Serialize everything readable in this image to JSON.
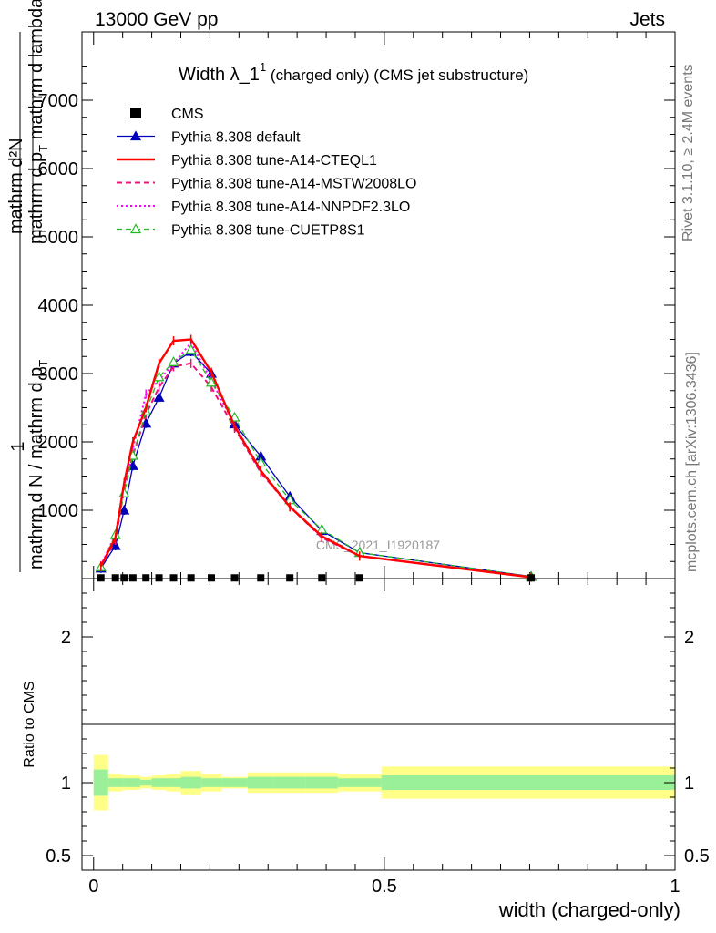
{
  "header": {
    "left": "13000 GeV pp",
    "right": "Jets"
  },
  "side_labels": {
    "rivet": "Rivet 3.1.10, ≥ 2.4M events",
    "mcplots": "mcplots.cern.ch [arXiv:1306.3436]"
  },
  "watermark": "CMS_2021_I1920187",
  "chart_data": {
    "type": "line",
    "title": "Width λ_1¹ (charged only) (CMS jet substructure)",
    "title_parts": {
      "main": "Width λ_1",
      "sup": "1",
      "rest": "(charged only) (CMS jet substructure)"
    },
    "ylabel": "1 / mathrm d N / mathrm d p_T mathrm d^2N / mathrm d p_T mathrm d lambda",
    "ylabel_parts": {
      "one": "1",
      "den1": "mathrm d N / mathrm d p",
      "den1_sub": "T",
      "num": "mathrm d²N",
      "den2": "mathrm d p",
      "den2_sub": "T",
      "den2_rest": "mathrm d lambda"
    },
    "xlabel": "width (charged-only)",
    "ratio_ylabel": "Ratio to CMS",
    "xlim": [
      -0.02,
      1.0
    ],
    "ylim": [
      0,
      8000
    ],
    "ratio_ylim": [
      0.4,
      2.4
    ],
    "x_ticks": [
      {
        "value": 0,
        "label": "0"
      },
      {
        "value": 0.5,
        "label": "0.5"
      },
      {
        "value": 1,
        "label": "1"
      }
    ],
    "y_ticks": [
      {
        "value": 1000,
        "label": "1000"
      },
      {
        "value": 2000,
        "label": "2000"
      },
      {
        "value": 3000,
        "label": "3000"
      },
      {
        "value": 4000,
        "label": "4000"
      },
      {
        "value": 5000,
        "label": "5000"
      },
      {
        "value": 6000,
        "label": "6000"
      },
      {
        "value": 7000,
        "label": "7000"
      }
    ],
    "ratio_y_ticks": [
      {
        "value": 0.5,
        "label": "0.5"
      },
      {
        "value": 1,
        "label": "1"
      },
      {
        "value": 2,
        "label": "2"
      }
    ],
    "x": [
      0.0125,
      0.0375,
      0.0525,
      0.0675,
      0.09,
      0.1125,
      0.1375,
      0.1675,
      0.2025,
      0.2425,
      0.2875,
      0.3375,
      0.3925,
      0.4575,
      0.7525
    ],
    "x_edges": [
      0.0,
      0.025,
      0.05,
      0.055,
      0.08,
      0.1,
      0.125,
      0.15,
      0.185,
      0.22,
      0.265,
      0.31,
      0.365,
      0.42,
      0.495,
      1.0
    ],
    "series": [
      {
        "name": "CMS",
        "style": "cms",
        "color": "#000000",
        "values": [
          10,
          10,
          10,
          10,
          10,
          10,
          10,
          10,
          10,
          10,
          10,
          10,
          10,
          10,
          10
        ]
      },
      {
        "name": "Pythia 8.308 default",
        "style": "solid-triangle",
        "color": "#0000bb",
        "values": [
          150,
          480,
          1000,
          1650,
          2270,
          2650,
          3150,
          3320,
          3000,
          2260,
          1790,
          1200,
          700,
          380,
          30
        ]
      },
      {
        "name": "Pythia 8.308 tune-A14-CTEQL1",
        "style": "solid-thick",
        "color": "#ff0000",
        "values": [
          180,
          600,
          1400,
          2000,
          2500,
          3150,
          3480,
          3500,
          3020,
          2230,
          1580,
          1050,
          620,
          330,
          20
        ]
      },
      {
        "name": "Pythia 8.308 tune-A14-MSTW2008LO",
        "style": "dashed",
        "color": "#ee1177",
        "values": [
          170,
          560,
          1300,
          1800,
          2400,
          2800,
          3100,
          3150,
          2800,
          2200,
          1550,
          1050,
          600,
          330,
          20
        ]
      },
      {
        "name": "Pythia 8.308 tune-A14-NNPDF2.3LO",
        "style": "dotted",
        "color": "#ff00ff",
        "values": [
          190,
          650,
          1350,
          1900,
          2700,
          2900,
          3150,
          3450,
          2900,
          2250,
          1570,
          1060,
          610,
          330,
          20
        ]
      },
      {
        "name": "Pythia 8.308 tune-CUETP8S1",
        "style": "dashed-triangle",
        "color": "#22bb22",
        "values": [
          170,
          640,
          1250,
          1800,
          2450,
          2950,
          3170,
          3350,
          2870,
          2360,
          1700,
          1150,
          720,
          380,
          30
        ]
      }
    ],
    "ratio_bands": {
      "yellow_half": [
        0.19,
        0.06,
        0.05,
        0.05,
        0.04,
        0.05,
        0.06,
        0.08,
        0.06,
        0.04,
        0.07,
        0.07,
        0.07,
        0.06,
        0.11
      ],
      "green_half": [
        0.09,
        0.03,
        0.03,
        0.03,
        0.02,
        0.03,
        0.03,
        0.04,
        0.03,
        0.03,
        0.04,
        0.04,
        0.04,
        0.03,
        0.05
      ]
    },
    "colors": {
      "yellow_band": "#ffff88",
      "green_band": "#99f099"
    }
  }
}
